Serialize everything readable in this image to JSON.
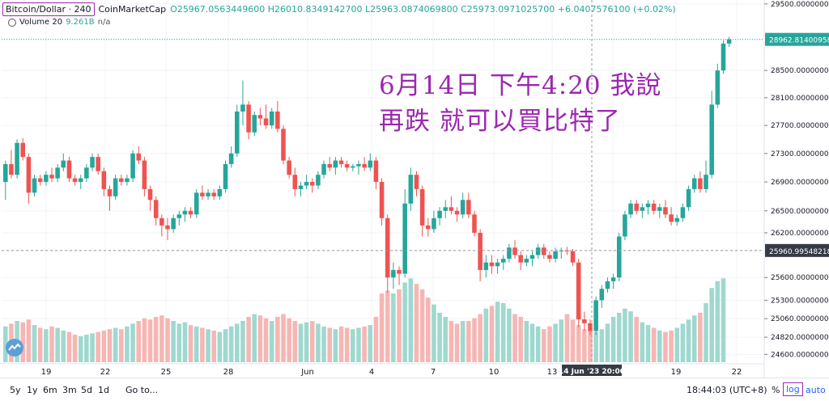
{
  "header": {
    "symbol": "Bitcoin/Dollar · 240",
    "exchange": "CoinMarketCap",
    "ohlc": "O25967.0563449600  H26010.8349142700  L25963.0874069800  C25973.0971025700  +6.0407576100 (+0.02%)"
  },
  "volume_legend": {
    "label": "Volume 20",
    "value": "9.261B",
    "extra": "n/a"
  },
  "annotation": {
    "line1": "6月14日 下午4:20 我說",
    "line2": "再跌 就可以買比特了"
  },
  "colors": {
    "up": "#26a69a",
    "down": "#ef5350",
    "up_vol": "#9fd8cf",
    "down_vol": "#f6b6b3",
    "accent": "#9c27b0",
    "link": "#2962ff"
  },
  "price_axis": {
    "labels": [
      "29500.0000000000",
      "28962.8140095800",
      "28500.0000000000",
      "28100.0000000000",
      "27700.0000000000",
      "27300.0000000000",
      "26900.0000000000",
      "26500.0000000000",
      "26200.0000000000",
      "25960.9954821800",
      "25600.0000000000",
      "25300.0000000000",
      "25060.0000000000",
      "24820.0000000000",
      "24600.0000000000"
    ]
  },
  "time_axis": {
    "labels": [
      "19",
      "22",
      "25",
      "28",
      "Jun",
      "4",
      "7",
      "10",
      "13",
      "14 Jun '23  20:00",
      "19",
      "22"
    ]
  },
  "bottom_bar": {
    "timeframes": [
      "5y",
      "1y",
      "6m",
      "3m",
      "5d",
      "1d"
    ],
    "goto": "Go to...",
    "time": "18:44:03 (UTC+8)",
    "percent": "%",
    "log": "log",
    "auto": "auto"
  },
  "chart_data": {
    "type": "candlestick",
    "scale": "log",
    "price_range": [
      24480,
      29560
    ],
    "last_price": 28962.81,
    "crosshair_price": 25960.99548218,
    "candles": [
      [
        26900,
        27200,
        26650,
        27150
      ],
      [
        27150,
        27350,
        26950,
        27000
      ],
      [
        27000,
        27500,
        26950,
        27450
      ],
      [
        27450,
        27520,
        27200,
        27250
      ],
      [
        27250,
        27300,
        26600,
        26750
      ],
      [
        26750,
        27000,
        26700,
        26950
      ],
      [
        26950,
        27000,
        26850,
        26900
      ],
      [
        26900,
        27050,
        26850,
        27000
      ],
      [
        27000,
        27100,
        26900,
        26950
      ],
      [
        26950,
        27150,
        26900,
        27100
      ],
      [
        27100,
        27300,
        27050,
        27200
      ],
      [
        27200,
        27250,
        26900,
        26950
      ],
      [
        26950,
        27000,
        26850,
        26900
      ],
      [
        26900,
        27000,
        26800,
        26950
      ],
      [
        26950,
        27150,
        26900,
        27100
      ],
      [
        27100,
        27300,
        27050,
        27250
      ],
      [
        27250,
        27300,
        27000,
        27050
      ],
      [
        27050,
        27100,
        26700,
        26800
      ],
      [
        26800,
        26850,
        26500,
        26700
      ],
      [
        26700,
        27000,
        26650,
        26950
      ],
      [
        26950,
        27000,
        26850,
        26900
      ],
      [
        26900,
        27000,
        26850,
        26950
      ],
      [
        26950,
        27350,
        26900,
        27300
      ],
      [
        27300,
        27400,
        27150,
        27200
      ],
      [
        27200,
        27250,
        26700,
        26800
      ],
      [
        26800,
        26850,
        26500,
        26650
      ],
      [
        26650,
        26700,
        26300,
        26400
      ],
      [
        26400,
        26450,
        26150,
        26300
      ],
      [
        26300,
        26400,
        26100,
        26250
      ],
      [
        26250,
        26450,
        26200,
        26400
      ],
      [
        26400,
        26500,
        26300,
        26450
      ],
      [
        26450,
        26550,
        26350,
        26500
      ],
      [
        26500,
        26550,
        26400,
        26450
      ],
      [
        26450,
        26800,
        26400,
        26750
      ],
      [
        26750,
        26850,
        26650,
        26700
      ],
      [
        26700,
        26800,
        26650,
        26750
      ],
      [
        26750,
        26800,
        26650,
        26700
      ],
      [
        26700,
        26850,
        26650,
        26800
      ],
      [
        26800,
        27200,
        26750,
        27150
      ],
      [
        27150,
        27400,
        27100,
        27300
      ],
      [
        27300,
        28000,
        27250,
        27900
      ],
      [
        27900,
        28350,
        27700,
        28000
      ],
      [
        28000,
        28050,
        27500,
        27600
      ],
      [
        27600,
        27900,
        27550,
        27850
      ],
      [
        27850,
        27950,
        27700,
        27800
      ],
      [
        27800,
        28000,
        27650,
        27700
      ],
      [
        27700,
        27950,
        27650,
        27900
      ],
      [
        27900,
        28050,
        27600,
        27650
      ],
      [
        27650,
        27700,
        27150,
        27200
      ],
      [
        27200,
        27250,
        26950,
        27000
      ],
      [
        27000,
        27100,
        26700,
        26800
      ],
      [
        26800,
        26900,
        26700,
        26850
      ],
      [
        26850,
        27000,
        26800,
        26900
      ],
      [
        26900,
        26950,
        26750,
        26850
      ],
      [
        26850,
        27050,
        26800,
        27000
      ],
      [
        27000,
        27200,
        26950,
        27150
      ],
      [
        27150,
        27250,
        27050,
        27100
      ],
      [
        27100,
        27250,
        27000,
        27200
      ],
      [
        27200,
        27250,
        27100,
        27150
      ],
      [
        27150,
        27200,
        27050,
        27100
      ],
      [
        27100,
        27150,
        27050,
        27120
      ],
      [
        27120,
        27200,
        27000,
        27150
      ],
      [
        27150,
        27250,
        27050,
        27100
      ],
      [
        27100,
        27300,
        27050,
        27200
      ],
      [
        27200,
        27250,
        26800,
        26900
      ],
      [
        26900,
        26950,
        26300,
        26400
      ],
      [
        26400,
        26450,
        25400,
        25600
      ],
      [
        25600,
        25800,
        25450,
        25700
      ],
      [
        25700,
        25750,
        25500,
        25650
      ],
      [
        25650,
        26800,
        25600,
        26600
      ],
      [
        26600,
        27100,
        26500,
        27000
      ],
      [
        27000,
        27050,
        26700,
        26800
      ],
      [
        26800,
        26850,
        26150,
        26300
      ],
      [
        26300,
        26400,
        26150,
        26250
      ],
      [
        26250,
        26500,
        26200,
        26400
      ],
      [
        26400,
        26550,
        26300,
        26500
      ],
      [
        26500,
        26650,
        26400,
        26550
      ],
      [
        26550,
        26700,
        26450,
        26500
      ],
      [
        26500,
        26550,
        26350,
        26450
      ],
      [
        26450,
        26750,
        26400,
        26650
      ],
      [
        26650,
        26750,
        26400,
        26450
      ],
      [
        26450,
        26500,
        26150,
        26200
      ],
      [
        26200,
        26250,
        25550,
        25700
      ],
      [
        25700,
        25900,
        25600,
        25800
      ],
      [
        25800,
        25900,
        25650,
        25750
      ],
      [
        25750,
        25850,
        25650,
        25800
      ],
      [
        25800,
        25900,
        25700,
        25850
      ],
      [
        25850,
        26050,
        25800,
        26000
      ],
      [
        26000,
        26100,
        25850,
        25900
      ],
      [
        25900,
        25950,
        25700,
        25800
      ],
      [
        25800,
        25900,
        25750,
        25850
      ],
      [
        25850,
        25950,
        25750,
        25900
      ],
      [
        25900,
        26050,
        25850,
        26000
      ],
      [
        26000,
        26050,
        25850,
        25900
      ],
      [
        25900,
        25950,
        25800,
        25850
      ],
      [
        25850,
        26000,
        25800,
        25950
      ],
      [
        25950,
        26000,
        25850,
        25960
      ],
      [
        25960,
        26010,
        25900,
        25950
      ],
      [
        25950,
        25980,
        25750,
        25800
      ],
      [
        25800,
        25850,
        24950,
        25050
      ],
      [
        25050,
        25150,
        24900,
        25000
      ],
      [
        25000,
        25050,
        24850,
        24900
      ],
      [
        24900,
        25350,
        24850,
        25300
      ],
      [
        25300,
        25500,
        25200,
        25450
      ],
      [
        25450,
        25600,
        25400,
        25550
      ],
      [
        25550,
        25650,
        25450,
        25600
      ],
      [
        25600,
        26200,
        25550,
        26150
      ],
      [
        26150,
        26500,
        26100,
        26450
      ],
      [
        26450,
        26650,
        26400,
        26600
      ],
      [
        26600,
        26650,
        26450,
        26500
      ],
      [
        26500,
        26600,
        26400,
        26550
      ],
      [
        26550,
        26650,
        26450,
        26600
      ],
      [
        26600,
        26650,
        26450,
        26500
      ],
      [
        26500,
        26600,
        26400,
        26550
      ],
      [
        26550,
        26650,
        26400,
        26450
      ],
      [
        26450,
        26550,
        26300,
        26350
      ],
      [
        26350,
        26450,
        26300,
        26400
      ],
      [
        26400,
        26600,
        26350,
        26550
      ],
      [
        26550,
        26850,
        26500,
        26800
      ],
      [
        26800,
        27000,
        26750,
        26950
      ],
      [
        26950,
        27050,
        26750,
        26800
      ],
      [
        26800,
        27200,
        26750,
        27000
      ],
      [
        27000,
        28200,
        26950,
        28000
      ],
      [
        28000,
        28600,
        27950,
        28500
      ],
      [
        28500,
        28950,
        28450,
        28900
      ],
      [
        28900,
        29000,
        28850,
        28963
      ]
    ],
    "volumes": [
      2.6,
      2.8,
      3.0,
      2.9,
      3.1,
      2.7,
      2.5,
      2.4,
      2.6,
      2.5,
      2.3,
      2.2,
      2.0,
      1.9,
      2.0,
      2.1,
      2.2,
      2.3,
      2.4,
      2.5,
      2.4,
      2.6,
      2.8,
      3.0,
      3.2,
      3.1,
      3.3,
      3.4,
      3.2,
      3.0,
      2.8,
      2.9,
      2.7,
      2.6,
      2.5,
      2.4,
      2.3,
      2.2,
      2.4,
      2.6,
      2.8,
      3.0,
      3.3,
      3.5,
      3.4,
      3.2,
      3.0,
      3.3,
      3.5,
      3.2,
      3.0,
      2.8,
      2.9,
      3.0,
      2.8,
      2.6,
      2.5,
      2.4,
      2.6,
      2.5,
      2.4,
      2.5,
      2.6,
      2.7,
      3.3,
      5.0,
      5.2,
      5.0,
      5.3,
      5.8,
      6.1,
      5.7,
      5.3,
      4.7,
      4.2,
      3.6,
      3.3,
      3.0,
      2.8,
      3.0,
      3.0,
      3.2,
      3.5,
      3.9,
      4.1,
      4.4,
      4.3,
      3.9,
      3.5,
      3.3,
      3.0,
      2.8,
      2.6,
      2.4,
      2.6,
      2.8,
      3.1,
      3.5,
      3.1,
      2.7,
      2.4,
      2.3,
      2.2,
      2.4,
      2.8,
      3.3,
      3.6,
      3.9,
      3.7,
      3.3,
      2.9,
      2.7,
      2.5,
      2.3,
      2.2,
      2.3,
      2.5,
      2.8,
      3.1,
      3.4,
      3.6,
      4.3,
      5.4,
      5.9,
      6.1
    ]
  }
}
